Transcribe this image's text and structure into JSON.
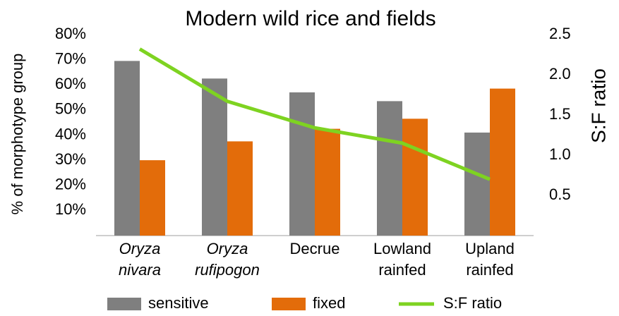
{
  "chart_data": {
    "type": "bar",
    "title": "Modern wild rice and fields",
    "categories": [
      "Oryza nivara",
      "Oryza rufipogon",
      "Decrue",
      "Lowland rainfed",
      "Upland rainfed"
    ],
    "category_italic": [
      true,
      true,
      false,
      false,
      false
    ],
    "ylabel": "% of morphotype group",
    "y2label": "S:F ratio",
    "series": [
      {
        "name": "sensitive",
        "type": "bar",
        "color": "#7f7f7f",
        "values": [
          69.5,
          62.5,
          57,
          53.5,
          41
        ]
      },
      {
        "name": "fixed",
        "type": "bar",
        "color": "#e36c0a",
        "values": [
          30,
          37.5,
          42.5,
          46.5,
          58.5
        ]
      },
      {
        "name": "S:F ratio",
        "type": "line",
        "axis": "y2",
        "color": "#7ed321",
        "values": [
          2.32,
          1.67,
          1.34,
          1.15,
          0.7
        ]
      }
    ],
    "ylim": [
      0,
      80
    ],
    "yticks": [
      {
        "value": 10,
        "label": "10%"
      },
      {
        "value": 20,
        "label": "20%"
      },
      {
        "value": 30,
        "label": "30%"
      },
      {
        "value": 40,
        "label": "40%"
      },
      {
        "value": 50,
        "label": "50%"
      },
      {
        "value": 60,
        "label": "60%"
      },
      {
        "value": 70,
        "label": "70%"
      },
      {
        "value": 80,
        "label": "80%"
      }
    ],
    "y2lim": [
      0,
      2.5
    ],
    "y2ticks": [
      0.5,
      {
        "value": 1,
        "label": "1.0"
      },
      1.5,
      {
        "value": 2,
        "label": "2.0"
      },
      2.5
    ],
    "grid": false,
    "legend": "bottom"
  }
}
